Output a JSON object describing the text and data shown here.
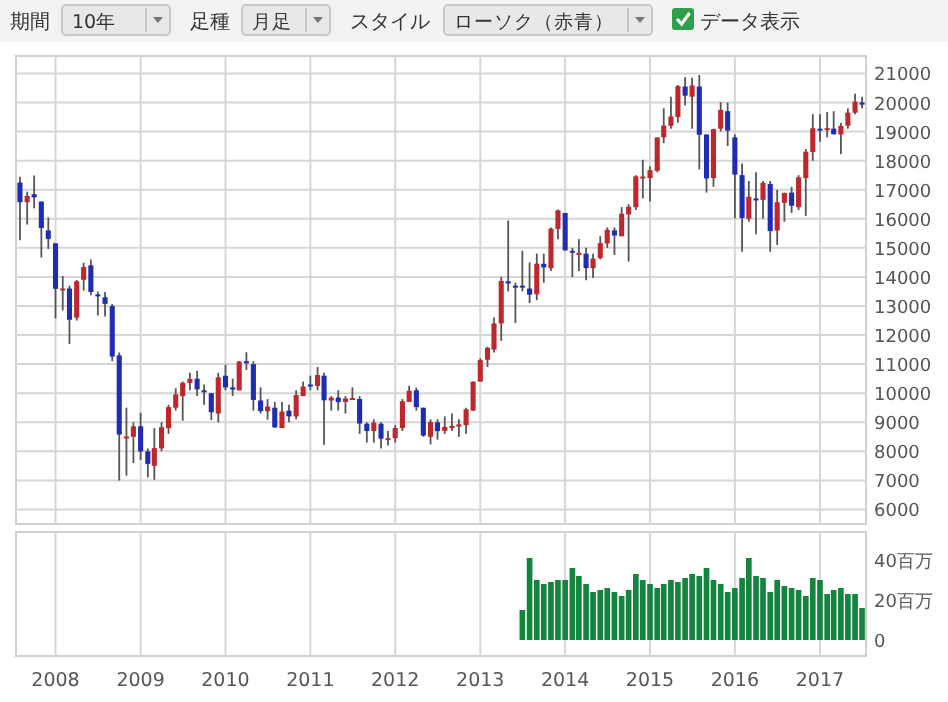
{
  "chart_data": [
    {
      "type": "candlestick",
      "annotations": [
        "期間",
        "10年",
        "足種",
        "月足",
        "スタイル",
        "ローソク（赤青）",
        "データ表示"
      ],
      "x": [
        "2007-08",
        "2007-09",
        "2007-10",
        "2007-11",
        "2007-12",
        "2008-01",
        "2008-02",
        "2008-03",
        "2008-04",
        "2008-05",
        "2008-06",
        "2008-07",
        "2008-08",
        "2008-09",
        "2008-10",
        "2008-11",
        "2008-12",
        "2009-01",
        "2009-02",
        "2009-03",
        "2009-04",
        "2009-05",
        "2009-06",
        "2009-07",
        "2009-08",
        "2009-09",
        "2009-10",
        "2009-11",
        "2009-12",
        "2010-01",
        "2010-02",
        "2010-03",
        "2010-04",
        "2010-05",
        "2010-06",
        "2010-07",
        "2010-08",
        "2010-09",
        "2010-10",
        "2010-11",
        "2010-12",
        "2011-01",
        "2011-02",
        "2011-03",
        "2011-04",
        "2011-05",
        "2011-06",
        "2011-07",
        "2011-08",
        "2011-09",
        "2011-10",
        "2011-11",
        "2011-12",
        "2012-01",
        "2012-02",
        "2012-03",
        "2012-04",
        "2012-05",
        "2012-06",
        "2012-07",
        "2012-08",
        "2012-09",
        "2012-10",
        "2012-11",
        "2012-12",
        "2013-01",
        "2013-02",
        "2013-03",
        "2013-04",
        "2013-05",
        "2013-06",
        "2013-07",
        "2013-08",
        "2013-09",
        "2013-10",
        "2013-11",
        "2013-12",
        "2014-01",
        "2014-02",
        "2014-03",
        "2014-04",
        "2014-05",
        "2014-06",
        "2014-07",
        "2014-08",
        "2014-09",
        "2014-10",
        "2014-11",
        "2014-12",
        "2015-01",
        "2015-02",
        "2015-03",
        "2015-04",
        "2015-05",
        "2015-06",
        "2015-07",
        "2015-08",
        "2015-09",
        "2015-10",
        "2015-11",
        "2015-12",
        "2016-01",
        "2016-02",
        "2016-03",
        "2016-04",
        "2016-05",
        "2016-06",
        "2016-07",
        "2016-08",
        "2016-09",
        "2016-10",
        "2016-11",
        "2016-12",
        "2017-01",
        "2017-02",
        "2017-03",
        "2017-04",
        "2017-05",
        "2017-06",
        "2017-07"
      ],
      "ohlc": [
        [
          17248,
          17447,
          15262,
          16569
        ],
        [
          16570,
          16932,
          15801,
          16786
        ],
        [
          16845,
          17488,
          16358,
          16738
        ],
        [
          16590,
          16600,
          14669,
          15681
        ],
        [
          15600,
          16044,
          14963,
          15308
        ],
        [
          15156,
          15156,
          12573,
          13592
        ],
        [
          13600,
          14031,
          12847,
          13603
        ],
        [
          13600,
          13700,
          11691,
          12526
        ],
        [
          12600,
          13894,
          12500,
          13850
        ],
        [
          13900,
          14489,
          13528,
          14339
        ],
        [
          14400,
          14601,
          13369,
          13482
        ],
        [
          13400,
          13500,
          12671,
          13377
        ],
        [
          13300,
          13477,
          12642,
          13073
        ],
        [
          13000,
          13072,
          11099,
          11260
        ],
        [
          11300,
          11400,
          6995,
          8577
        ],
        [
          8500,
          9503,
          7163,
          8512
        ],
        [
          8500,
          9000,
          7600,
          8860
        ],
        [
          8860,
          9325,
          7700,
          7994
        ],
        [
          8000,
          8100,
          7100,
          7568
        ],
        [
          7500,
          8800,
          7021,
          8110
        ],
        [
          8100,
          9000,
          8000,
          8828
        ],
        [
          8800,
          9600,
          8600,
          9523
        ],
        [
          9500,
          10170,
          9400,
          9958
        ],
        [
          9900,
          10400,
          9050,
          10357
        ],
        [
          10350,
          10700,
          10100,
          10493
        ],
        [
          10500,
          10767,
          9900,
          10133
        ],
        [
          10100,
          10300,
          9600,
          10035
        ],
        [
          10000,
          10000,
          9076,
          9345
        ],
        [
          9300,
          10700,
          9000,
          10546
        ],
        [
          10600,
          10982,
          10100,
          10198
        ],
        [
          10200,
          10500,
          9900,
          10126
        ],
        [
          10100,
          11100,
          10100,
          11090
        ],
        [
          11100,
          11408,
          10800,
          11057
        ],
        [
          11000,
          11100,
          9400,
          9768
        ],
        [
          9750,
          10200,
          9300,
          9383
        ],
        [
          9380,
          9800,
          9090,
          9537
        ],
        [
          9500,
          9700,
          8800,
          8824
        ],
        [
          8800,
          9700,
          8800,
          9369
        ],
        [
          9400,
          9600,
          9000,
          9202
        ],
        [
          9200,
          10100,
          9100,
          9937
        ],
        [
          9900,
          10400,
          9900,
          10228
        ],
        [
          10300,
          10600,
          10100,
          10237
        ],
        [
          10250,
          10900,
          10100,
          10624
        ],
        [
          10600,
          10700,
          8227,
          9755
        ],
        [
          9750,
          9900,
          9400,
          9849
        ],
        [
          9850,
          10100,
          9400,
          9693
        ],
        [
          9700,
          9900,
          9300,
          9816
        ],
        [
          9800,
          10200,
          9800,
          9833
        ],
        [
          9800,
          9900,
          8600,
          8955
        ],
        [
          8950,
          9000,
          8300,
          8700
        ],
        [
          8700,
          9100,
          8300,
          8988
        ],
        [
          8950,
          9000,
          8100,
          8434
        ],
        [
          8400,
          8700,
          8200,
          8455
        ],
        [
          8450,
          8900,
          8300,
          8802
        ],
        [
          8800,
          9800,
          8700,
          9723
        ],
        [
          9700,
          10255,
          9700,
          10083
        ],
        [
          10100,
          10190,
          9400,
          9520
        ],
        [
          9500,
          9500,
          8500,
          8543
        ],
        [
          8500,
          9100,
          8238,
          9007
        ],
        [
          9000,
          9100,
          8400,
          8695
        ],
        [
          8700,
          9200,
          8600,
          8840
        ],
        [
          8800,
          9300,
          8700,
          8870
        ],
        [
          8850,
          9100,
          8500,
          8928
        ],
        [
          8900,
          9500,
          8600,
          9446
        ],
        [
          9400,
          10400,
          9400,
          10395
        ],
        [
          10400,
          11200,
          10400,
          11138
        ],
        [
          11150,
          11600,
          10900,
          11559
        ],
        [
          11500,
          12600,
          11400,
          12398
        ],
        [
          12400,
          14000,
          11800,
          13860
        ],
        [
          13850,
          15942,
          13500,
          13775
        ],
        [
          13700,
          13800,
          12415,
          13677
        ],
        [
          13700,
          14900,
          13500,
          13668
        ],
        [
          13600,
          14500,
          13100,
          13389
        ],
        [
          13400,
          14800,
          13200,
          14456
        ],
        [
          14450,
          14800,
          13800,
          14328
        ],
        [
          14300,
          15700,
          14200,
          15662
        ],
        [
          15650,
          16320,
          15300,
          16291
        ],
        [
          16200,
          16200,
          14900,
          14915
        ],
        [
          14900,
          15000,
          13995,
          14841
        ],
        [
          14800,
          15300,
          14200,
          14828
        ],
        [
          14800,
          15000,
          13885,
          14304
        ],
        [
          14300,
          14800,
          13964,
          14632
        ],
        [
          14650,
          15400,
          14600,
          15162
        ],
        [
          15150,
          15700,
          15000,
          15621
        ],
        [
          15600,
          15700,
          14753,
          15425
        ],
        [
          15400,
          16400,
          15400,
          16174
        ],
        [
          16150,
          16500,
          14529,
          16414
        ],
        [
          16400,
          17500,
          16300,
          17460
        ],
        [
          17450,
          18030,
          16700,
          17451
        ],
        [
          17400,
          17800,
          16592,
          17674
        ],
        [
          17650,
          18800,
          17600,
          18798
        ],
        [
          18800,
          19800,
          18600,
          19207
        ],
        [
          19200,
          20200,
          19100,
          19520
        ],
        [
          19500,
          20600,
          19300,
          20563
        ],
        [
          20550,
          20868,
          19900,
          20236
        ],
        [
          20200,
          20850,
          19100,
          20585
        ],
        [
          20550,
          20946,
          17700,
          18890
        ],
        [
          18900,
          18900,
          16901,
          17388
        ],
        [
          17400,
          19100,
          17100,
          19083
        ],
        [
          19100,
          20012,
          19000,
          19747
        ],
        [
          19700,
          20000,
          18500,
          19034
        ],
        [
          18800,
          18900,
          16017,
          17518
        ],
        [
          17500,
          17900,
          14865,
          16027
        ],
        [
          16000,
          17300,
          15900,
          16759
        ],
        [
          16700,
          17600,
          15471,
          16666
        ],
        [
          16650,
          17300,
          16000,
          17235
        ],
        [
          17200,
          17300,
          14864,
          15576
        ],
        [
          15600,
          17000,
          15100,
          16569
        ],
        [
          16550,
          16900,
          15900,
          16887
        ],
        [
          16900,
          17100,
          16200,
          16450
        ],
        [
          16400,
          17500,
          16300,
          17425
        ],
        [
          17400,
          18400,
          16100,
          18308
        ],
        [
          18300,
          19600,
          18000,
          19114
        ],
        [
          19100,
          19600,
          18650,
          19041
        ],
        [
          19050,
          19670,
          18800,
          19119
        ],
        [
          19100,
          19700,
          18900,
          18909
        ],
        [
          18900,
          19300,
          18224,
          19197
        ],
        [
          19200,
          19800,
          19100,
          19651
        ],
        [
          19650,
          20300,
          19600,
          20033
        ],
        [
          20000,
          20200,
          19800,
          19925
        ]
      ],
      "colors": [
        "#1f2db3",
        "#c0272d",
        "#1f2db3",
        "#1f2db3",
        "#1f2db3",
        "#1f2db3",
        "#c0272d",
        "#1f2db3",
        "#c0272d",
        "#c0272d",
        "#1f2db3",
        "#1f2db3",
        "#1f2db3",
        "#1f2db3",
        "#1f2db3",
        "#c0272d",
        "#c0272d",
        "#1f2db3",
        "#1f2db3",
        "#c0272d",
        "#c0272d",
        "#c0272d",
        "#c0272d",
        "#c0272d",
        "#c0272d",
        "#1f2db3",
        "#1f2db3",
        "#1f2db3",
        "#c0272d",
        "#1f2db3",
        "#1f2db3",
        "#c0272d",
        "#1f2db3",
        "#1f2db3",
        "#1f2db3",
        "#c0272d",
        "#1f2db3",
        "#c0272d",
        "#1f2db3",
        "#c0272d",
        "#c0272d",
        "#1f2db3",
        "#c0272d",
        "#1f2db3",
        "#c0272d",
        "#1f2db3",
        "#c0272d",
        "#c0272d",
        "#1f2db3",
        "#1f2db3",
        "#c0272d",
        "#1f2db3",
        "#c0272d",
        "#c0272d",
        "#c0272d",
        "#c0272d",
        "#1f2db3",
        "#1f2db3",
        "#c0272d",
        "#1f2db3",
        "#c0272d",
        "#c0272d",
        "#c0272d",
        "#c0272d",
        "#c0272d",
        "#c0272d",
        "#c0272d",
        "#c0272d",
        "#c0272d",
        "#1f2db3",
        "#1f2db3",
        "#1f2db3",
        "#1f2db3",
        "#c0272d",
        "#1f2db3",
        "#c0272d",
        "#c0272d",
        "#1f2db3",
        "#1f2db3",
        "#c0272d",
        "#1f2db3",
        "#c0272d",
        "#c0272d",
        "#c0272d",
        "#1f2db3",
        "#c0272d",
        "#c0272d",
        "#c0272d",
        "#c0272d",
        "#c0272d",
        "#c0272d",
        "#c0272d",
        "#c0272d",
        "#c0272d",
        "#1f2db3",
        "#c0272d",
        "#1f2db3",
        "#1f2db3",
        "#c0272d",
        "#c0272d",
        "#1f2db3",
        "#1f2db3",
        "#1f2db3",
        "#c0272d",
        "#1f2db3",
        "#c0272d",
        "#1f2db3",
        "#c0272d",
        "#c0272d",
        "#1f2db3",
        "#c0272d",
        "#c0272d",
        "#c0272d",
        "#1f2db3",
        "#c0272d",
        "#1f2db3",
        "#c0272d",
        "#c0272d",
        "#c0272d",
        "#1f2db3"
      ],
      "xlim": [
        "2007-07-15",
        "2017-07-18"
      ],
      "xticks": [
        {
          "value": "2008-01-01",
          "label": null
        },
        {
          "value": "2009-01-01",
          "label": null
        },
        {
          "value": "2010-01-01",
          "label": null
        },
        {
          "value": "2011-01-01",
          "label": null
        },
        {
          "value": "2012-01-01",
          "label": null
        },
        {
          "value": "2013-01-01",
          "label": null
        },
        {
          "value": "2014-01-01",
          "label": null
        },
        {
          "value": "2015-01-01",
          "label": null
        },
        {
          "value": "2016-01-01",
          "label": null
        },
        {
          "value": "2017-01-01",
          "label": null
        }
      ],
      "ylim": [
        5500,
        21600
      ],
      "yticks": [
        6000,
        7000,
        8000,
        9000,
        10000,
        11000,
        12000,
        13000,
        14000,
        15000,
        16000,
        17000,
        18000,
        19000,
        20000,
        21000
      ],
      "grid": true,
      "tick_labels": "y"
    },
    {
      "type": "bar",
      "x": [
        "2013-07",
        "2013-08",
        "2013-09",
        "2013-10",
        "2013-11",
        "2013-12",
        "2014-01",
        "2014-02",
        "2014-03",
        "2014-04",
        "2014-05",
        "2014-06",
        "2014-07",
        "2014-08",
        "2014-09",
        "2014-10",
        "2014-11",
        "2014-12",
        "2015-01",
        "2015-02",
        "2015-03",
        "2015-04",
        "2015-05",
        "2015-06",
        "2015-07",
        "2015-08",
        "2015-09",
        "2015-10",
        "2015-11",
        "2015-12",
        "2016-01",
        "2016-02",
        "2016-03",
        "2016-04",
        "2016-05",
        "2016-06",
        "2016-07",
        "2016-08",
        "2016-09",
        "2016-10",
        "2016-11",
        "2016-12",
        "2017-01",
        "2017-02",
        "2017-03",
        "2017-04",
        "2017-05",
        "2017-06",
        "2017-07"
      ],
      "values": [
        15,
        41,
        30,
        28,
        29,
        30,
        30,
        36,
        32,
        28,
        24,
        25,
        26,
        24,
        22,
        25,
        33,
        30,
        28,
        26,
        28,
        30,
        29,
        31,
        33,
        32,
        36,
        30,
        28,
        24,
        26,
        31,
        41,
        32,
        31,
        24,
        30,
        27,
        26,
        25,
        22,
        31,
        30,
        23,
        25,
        26,
        23,
        23,
        16
      ],
      "color": "#14853f",
      "xlim": [
        "2007-07-15",
        "2017-07-18"
      ],
      "xticks": [
        {
          "value": "2008-01-01",
          "label": "2008"
        },
        {
          "value": "2009-01-01",
          "label": "2009"
        },
        {
          "value": "2010-01-01",
          "label": "2010"
        },
        {
          "value": "2011-01-01",
          "label": "2011"
        },
        {
          "value": "2012-01-01",
          "label": "2012"
        },
        {
          "value": "2013-01-01",
          "label": "2013"
        },
        {
          "value": "2014-01-01",
          "label": "2014"
        },
        {
          "value": "2015-01-01",
          "label": "2015"
        },
        {
          "value": "2016-01-01",
          "label": "2016"
        },
        {
          "value": "2017-01-01",
          "label": "2017"
        }
      ],
      "ylim": [
        -8,
        54
      ],
      "yticks": [
        0,
        {
          "value": 20,
          "label": "20百万"
        },
        {
          "value": 40,
          "label": "40百万"
        }
      ],
      "grid": "x"
    }
  ]
}
